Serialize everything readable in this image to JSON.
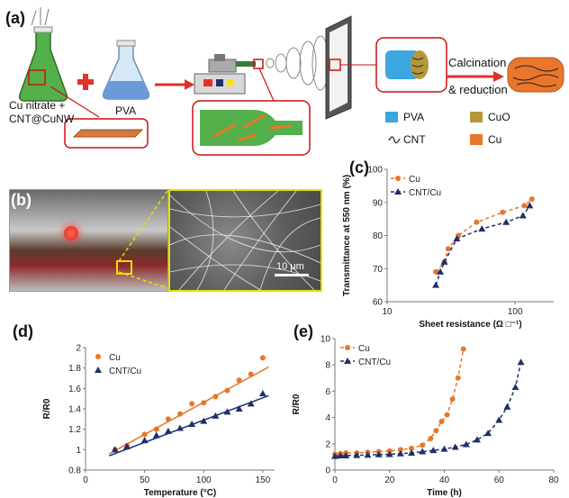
{
  "panels": {
    "a": "(a)",
    "b": "(b)",
    "c": "(c)",
    "d": "(d)",
    "e": "(e)"
  },
  "schematic": {
    "flask1_label_1": "Cu nitrate +",
    "flask1_label_2": "CNT@CuNW",
    "flask2_label": "PVA",
    "process_label_1": "Calcination",
    "process_label_2": "& reduction",
    "legend": {
      "pva": "PVA",
      "cuo": "CuO",
      "cnt": "CNT",
      "cu": "Cu"
    },
    "colors": {
      "pva": "#3aa7e0",
      "cuo": "#b8963a",
      "cu": "#e8762b",
      "arrow": "#e0322b",
      "green": "#54b04a"
    }
  },
  "photo": {
    "scale_bar": "10 μm"
  },
  "chart_data": [
    {
      "id": "c",
      "type": "scatter",
      "title": "",
      "xlabel": "Sheet resistance (Ω □⁻¹)",
      "ylabel": "Transmittance at 550 nm (%)",
      "xscale": "log",
      "xlim": [
        10,
        200
      ],
      "ylim": [
        60,
        100
      ],
      "xticks": [
        10,
        100
      ],
      "yticks": [
        60,
        70,
        80,
        90,
        100
      ],
      "legend_position": "top-left",
      "series": [
        {
          "name": "Cu",
          "color": "#e8762b",
          "marker": "circle",
          "x": [
            24,
            28,
            30,
            36,
            50,
            80,
            118,
            135
          ],
          "y": [
            69,
            72,
            76,
            80,
            84,
            87,
            89,
            91
          ]
        },
        {
          "name": "CNT/Cu",
          "color": "#1f2f6b",
          "marker": "triangle",
          "x": [
            24,
            26,
            28,
            35,
            55,
            85,
            115,
            130
          ],
          "y": [
            65,
            69,
            72,
            79,
            82,
            84,
            86,
            89
          ]
        }
      ]
    },
    {
      "id": "d",
      "type": "scatter",
      "title": "",
      "xlabel": "Temperature (°C)",
      "ylabel": "R/R0",
      "xlim": [
        0,
        160
      ],
      "ylim": [
        0.8,
        2.0
      ],
      "xticks": [
        0,
        50,
        100,
        150
      ],
      "yticks": [
        0.8,
        1,
        1.2,
        1.4,
        1.6,
        1.8,
        2
      ],
      "ytick_labels": [
        "0.8",
        "1",
        "1.2",
        "1.4",
        "1.6",
        "1.8",
        "2"
      ],
      "legend_position": "top-left",
      "series": [
        {
          "name": "Cu",
          "color": "#e8762b",
          "marker": "circle",
          "x": [
            25,
            35,
            50,
            60,
            70,
            80,
            90,
            100,
            110,
            120,
            130,
            140,
            150
          ],
          "y": [
            1.0,
            1.04,
            1.15,
            1.2,
            1.3,
            1.35,
            1.45,
            1.46,
            1.52,
            1.58,
            1.68,
            1.74,
            1.9
          ],
          "fit": [
            [
              20,
              0.96
            ],
            [
              155,
              1.81
            ]
          ]
        },
        {
          "name": "CNT/Cu",
          "color": "#1f2f6b",
          "marker": "triangle",
          "x": [
            25,
            35,
            50,
            60,
            70,
            80,
            90,
            100,
            110,
            120,
            130,
            140,
            150
          ],
          "y": [
            1.0,
            1.03,
            1.09,
            1.14,
            1.18,
            1.21,
            1.25,
            1.28,
            1.33,
            1.37,
            1.4,
            1.45,
            1.55
          ],
          "fit": [
            [
              20,
              0.94
            ],
            [
              155,
              1.53
            ]
          ]
        }
      ]
    },
    {
      "id": "e",
      "type": "line",
      "title": "",
      "xlabel": "Time (h)",
      "ylabel": "R/R0",
      "xlim": [
        0,
        80
      ],
      "ylim": [
        0,
        10
      ],
      "xticks": [
        0,
        20,
        40,
        60,
        80
      ],
      "yticks": [
        0,
        2,
        4,
        6,
        8,
        10
      ],
      "legend_position": "top-left",
      "series": [
        {
          "name": "Cu",
          "color": "#e8762b",
          "marker": "circle",
          "x": [
            0,
            2,
            4,
            8,
            12,
            16,
            20,
            24,
            28,
            32,
            35,
            37,
            39,
            41,
            43,
            45,
            47
          ],
          "y": [
            1.2,
            1.25,
            1.3,
            1.3,
            1.35,
            1.4,
            1.45,
            1.55,
            1.65,
            1.9,
            2.4,
            3.0,
            3.7,
            4.2,
            5.4,
            7.0,
            9.2
          ]
        },
        {
          "name": "CNT/Cu",
          "color": "#1f2f6b",
          "marker": "triangle",
          "x": [
            0,
            2,
            4,
            8,
            12,
            16,
            20,
            24,
            28,
            32,
            36,
            40,
            44,
            48,
            52,
            56,
            60,
            63,
            66,
            68
          ],
          "y": [
            1.05,
            1.1,
            1.1,
            1.12,
            1.15,
            1.18,
            1.2,
            1.25,
            1.3,
            1.4,
            1.5,
            1.6,
            1.75,
            1.95,
            2.3,
            2.8,
            3.8,
            4.8,
            6.3,
            8.2
          ]
        }
      ]
    }
  ]
}
